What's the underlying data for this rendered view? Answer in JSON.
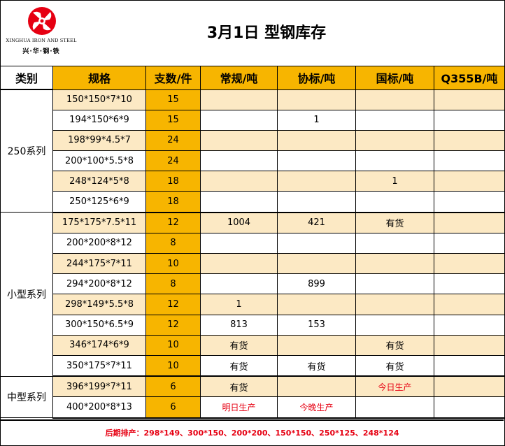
{
  "logo": {
    "en": "XINGHUA IRON AND STEEL",
    "cn": "兴·华·钢·铁",
    "color": "#e60012"
  },
  "title": "3月1日  型钢库存",
  "headers": [
    "类别",
    "规格",
    "支数/件",
    "常规/吨",
    "协标/吨",
    "国标/吨",
    "Q355B/吨"
  ],
  "groups": [
    {
      "name": "250系列",
      "rows": [
        {
          "spec": "150*150*7*10",
          "count": "15",
          "regular": "",
          "assoc": "",
          "national": "",
          "q355b": ""
        },
        {
          "spec": "194*150*6*9",
          "count": "15",
          "regular": "",
          "assoc": "1",
          "national": "",
          "q355b": ""
        },
        {
          "spec": "198*99*4.5*7",
          "count": "24",
          "regular": "",
          "assoc": "",
          "national": "",
          "q355b": ""
        },
        {
          "spec": "200*100*5.5*8",
          "count": "24",
          "regular": "",
          "assoc": "",
          "national": "",
          "q355b": ""
        },
        {
          "spec": "248*124*5*8",
          "count": "18",
          "regular": "",
          "assoc": "",
          "national": "1",
          "q355b": ""
        },
        {
          "spec": "250*125*6*9",
          "count": "18",
          "regular": "",
          "assoc": "",
          "national": "",
          "q355b": ""
        }
      ]
    },
    {
      "name": "小型系列",
      "rows": [
        {
          "spec": "175*175*7.5*11",
          "count": "12",
          "regular": "1004",
          "assoc": "421",
          "national": "有货",
          "q355b": ""
        },
        {
          "spec": "200*200*8*12",
          "count": "8",
          "regular": "",
          "assoc": "",
          "national": "",
          "q355b": ""
        },
        {
          "spec": "244*175*7*11",
          "count": "10",
          "regular": "",
          "assoc": "",
          "national": "",
          "q355b": ""
        },
        {
          "spec": "294*200*8*12",
          "count": "8",
          "regular": "",
          "assoc": "899",
          "national": "",
          "q355b": ""
        },
        {
          "spec": "298*149*5.5*8",
          "count": "12",
          "regular": "1",
          "assoc": "",
          "national": "",
          "q355b": ""
        },
        {
          "spec": "300*150*6.5*9",
          "count": "12",
          "regular": "813",
          "assoc": "153",
          "national": "",
          "q355b": ""
        },
        {
          "spec": "346*174*6*9",
          "count": "10",
          "regular": "有货",
          "assoc": "",
          "national": "有货",
          "q355b": ""
        },
        {
          "spec": "350*175*7*11",
          "count": "10",
          "regular": "有货",
          "assoc": "有货",
          "national": "有货",
          "q355b": ""
        }
      ]
    },
    {
      "name": "中型系列",
      "rows": [
        {
          "spec": "396*199*7*11",
          "count": "6",
          "regular": "有货",
          "assoc": "",
          "national": "今日生产",
          "q355b": ""
        },
        {
          "spec": "400*200*8*13",
          "count": "6",
          "regular": "明日生产",
          "assoc": "今晚生产",
          "national": "",
          "q355b": ""
        }
      ]
    }
  ],
  "red_values": [
    "今日生产",
    "明日生产",
    "今晚生产"
  ],
  "footer": "后期排产：298*149、300*150、200*200、150*150、250*125、248*124",
  "colors": {
    "header_gold": "#f7b500",
    "row_tint": "#fce9c4",
    "accent_red": "#e60012"
  }
}
